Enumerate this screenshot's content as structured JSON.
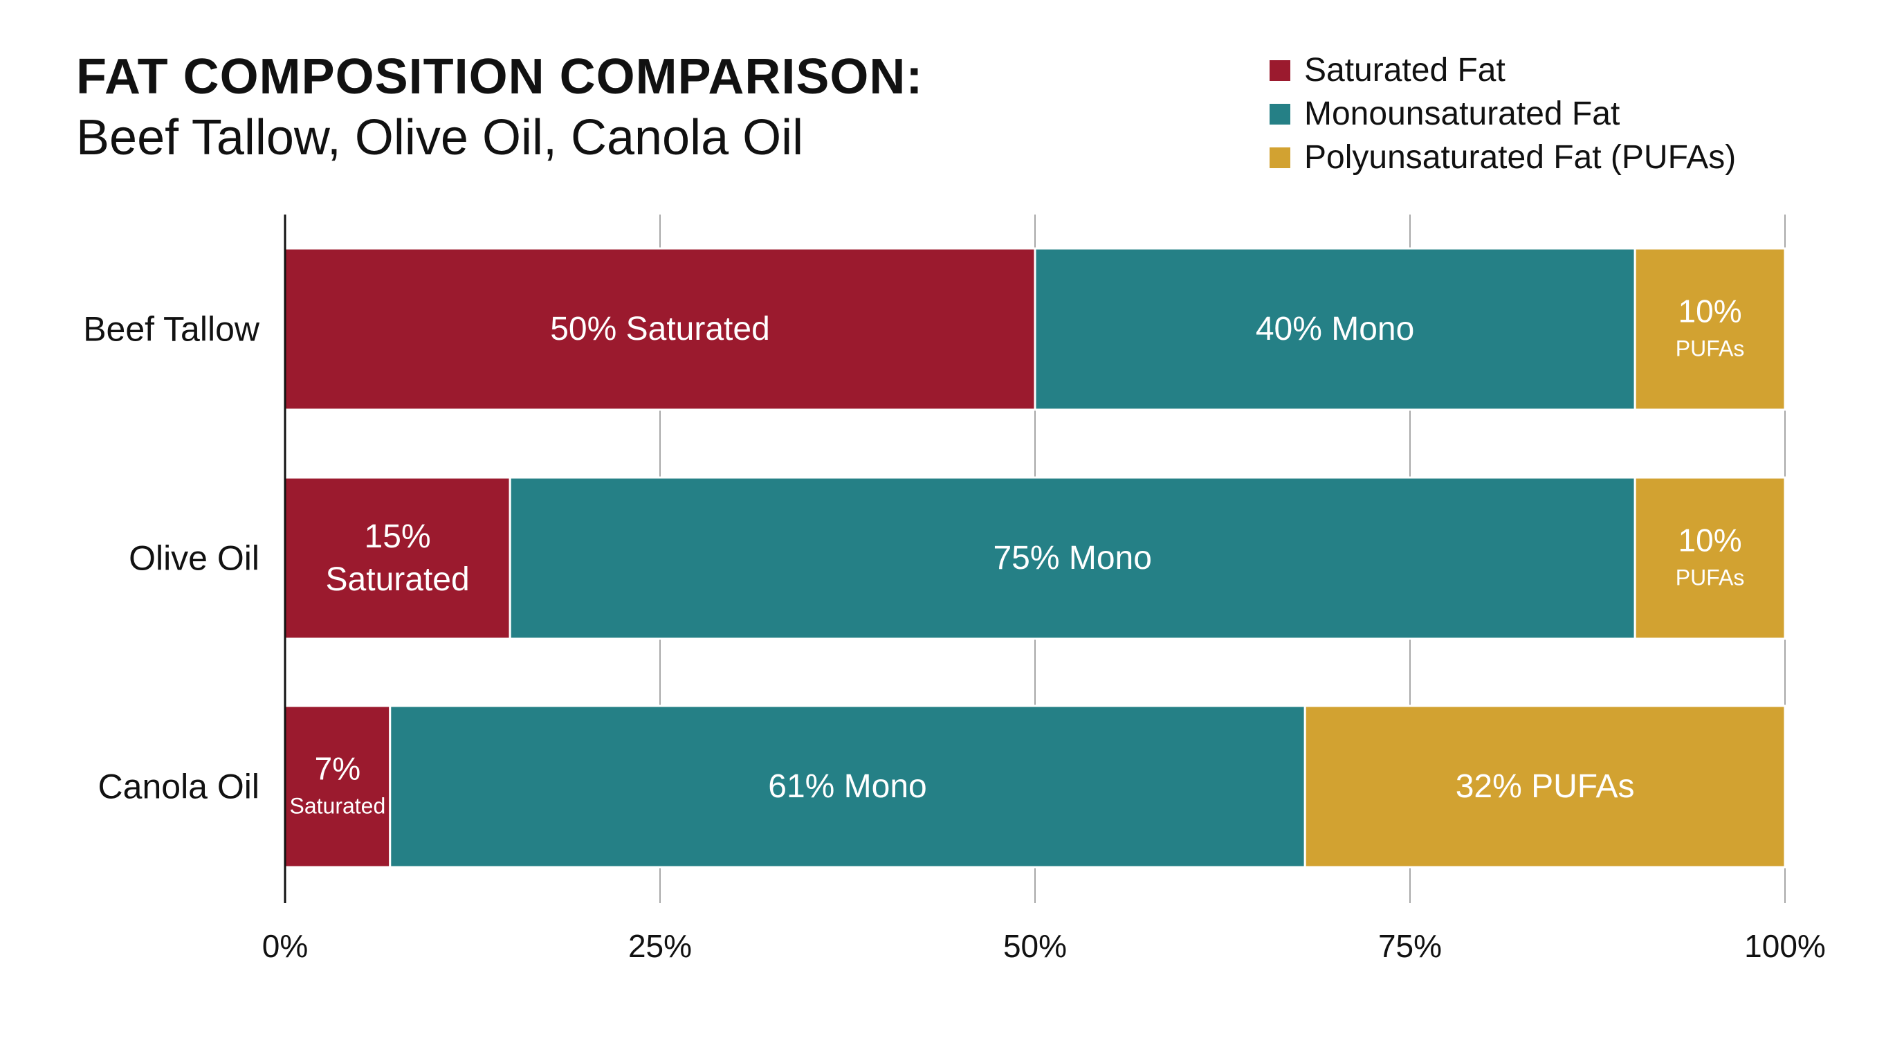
{
  "title": "FAT COMPOSITION COMPARISON:",
  "subtitle": "Beef Tallow, Olive Oil, Canola Oil",
  "legend": [
    {
      "label": "Saturated Fat",
      "color": "#9b1a2e"
    },
    {
      "label": "Monounsaturated Fat",
      "color": "#258086"
    },
    {
      "label": "Polyunsaturated Fat (PUFAs)",
      "color": "#d2a231"
    }
  ],
  "chart_data": {
    "type": "bar",
    "orientation": "horizontal",
    "stacked": true,
    "title": "FAT COMPOSITION COMPARISON:",
    "subtitle": "Beef Tallow, Olive Oil, Canola Oil",
    "categories": [
      "Beef Tallow",
      "Olive Oil",
      "Canola Oil"
    ],
    "series": [
      {
        "name": "Saturated Fat",
        "color": "#9b1a2e",
        "values": [
          50,
          15,
          7
        ],
        "labels": [
          [
            "50% Saturated"
          ],
          [
            "15%",
            "Saturated"
          ],
          [
            "7%",
            "Saturated"
          ]
        ]
      },
      {
        "name": "Monounsaturated Fat",
        "color": "#258086",
        "values": [
          40,
          75,
          61
        ],
        "labels": [
          [
            "40% Mono"
          ],
          [
            "75% Mono"
          ],
          [
            "61% Mono"
          ]
        ]
      },
      {
        "name": "Polyunsaturated Fat (PUFAs)",
        "color": "#d2a231",
        "values": [
          10,
          10,
          32
        ],
        "labels": [
          [
            "10%",
            "PUFAs"
          ],
          [
            "10%",
            "PUFAs"
          ],
          [
            "32% PUFAs"
          ]
        ]
      }
    ],
    "xlim": [
      0,
      100
    ],
    "xticks": [
      0,
      25,
      50,
      75,
      100
    ],
    "xtick_labels": [
      "0%",
      "25%",
      "50%",
      "75%",
      "100%"
    ],
    "grid": true,
    "legend_position": "top-right"
  }
}
